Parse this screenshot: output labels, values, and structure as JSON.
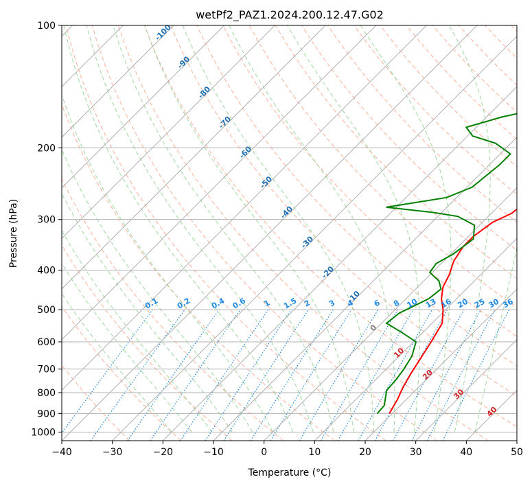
{
  "chart_data": {
    "type": "line",
    "chart_kind": "skew-T log-P diagram",
    "title": "wetPf2_PAZ1.2024.200.12.47.G02",
    "xlabel": "Temperature (°C)",
    "ylabel": "Pressure (hPa)",
    "xlim": [
      -40,
      50
    ],
    "ylim": [
      1050,
      100
    ],
    "y_scale": "log",
    "x_ticks": [
      -40,
      -30,
      -20,
      -10,
      0,
      10,
      20,
      30,
      40,
      50
    ],
    "x_tick_labels": [
      "−40",
      "−30",
      "−20",
      "−10",
      "0",
      "10",
      "20",
      "30",
      "40",
      "50"
    ],
    "y_ticks": [
      100,
      200,
      300,
      400,
      500,
      600,
      700,
      800,
      900,
      1000
    ],
    "y_tick_labels": [
      "100",
      "200",
      "300",
      "400",
      "500",
      "600",
      "700",
      "800",
      "900",
      "1000"
    ],
    "grid": true,
    "colors": {
      "temperature": "#ff0000",
      "dewpoint": "#008000",
      "isotherm": "#b0b0b0",
      "dry_adiabat": "#ff9a7a",
      "moist_adiabat": "#8cd18c",
      "mixing_ratio": "#1e88e5",
      "isotherm_label_neg": "#1f6fb4",
      "isotherm_label_zero": "#808080",
      "isotherm_label_pos": "#d62728",
      "mixing_label": "#1e88e5"
    },
    "series": [
      {
        "key": "temperature",
        "color": "#ff0000",
        "points": [
          [
            29.5,
            100
          ],
          [
            26.7,
            115
          ],
          [
            25.5,
            125
          ],
          [
            23.0,
            140
          ],
          [
            20.3,
            160
          ],
          [
            18.6,
            180
          ],
          [
            14.0,
            195
          ],
          [
            9.0,
            215
          ],
          [
            6.0,
            240
          ],
          [
            4.7,
            270
          ],
          [
            4.0,
            290
          ],
          [
            2.0,
            305
          ],
          [
            1.0,
            330
          ],
          [
            1.0,
            350
          ],
          [
            2.0,
            380
          ],
          [
            3.8,
            410
          ],
          [
            5.0,
            440
          ],
          [
            7.0,
            470
          ],
          [
            9.5,
            500
          ],
          [
            12.0,
            540
          ],
          [
            13.5,
            600
          ],
          [
            14.5,
            650
          ],
          [
            15.8,
            720
          ],
          [
            17.0,
            780
          ],
          [
            18.2,
            830
          ],
          [
            19.4,
            900
          ]
        ]
      },
      {
        "key": "dewpoint",
        "color": "#008000",
        "points": [
          [
            0.0,
            100
          ],
          [
            -3.5,
            115
          ],
          [
            -8.0,
            135
          ],
          [
            -10.0,
            150
          ],
          [
            -11.0,
            160
          ],
          [
            -17.0,
            168
          ],
          [
            -22.0,
            178
          ],
          [
            -19.0,
            187
          ],
          [
            -13.0,
            195
          ],
          [
            -8.0,
            207
          ],
          [
            -8.0,
            220
          ],
          [
            -9.0,
            250
          ],
          [
            -12.0,
            265
          ],
          [
            -22.0,
            280
          ],
          [
            -12.0,
            288
          ],
          [
            -6.0,
            295
          ],
          [
            -1.0,
            310
          ],
          [
            1.5,
            335
          ],
          [
            0.5,
            365
          ],
          [
            -1.0,
            385
          ],
          [
            -0.5,
            405
          ],
          [
            3.0,
            425
          ],
          [
            5.0,
            445
          ],
          [
            4.5,
            470
          ],
          [
            1.5,
            510
          ],
          [
            1.0,
            540
          ],
          [
            6.0,
            570
          ],
          [
            10.5,
            600
          ],
          [
            12.5,
            650
          ],
          [
            13.5,
            700
          ],
          [
            14.0,
            740
          ],
          [
            14.3,
            790
          ],
          [
            16.8,
            860
          ],
          [
            17.0,
            900
          ]
        ]
      }
    ],
    "isotherm_labels": [
      "-100",
      "-90",
      "-80",
      "-70",
      "-60",
      "-50",
      "-40",
      "-30",
      "-20",
      "-10",
      "0",
      "10",
      "20",
      "30",
      "40"
    ],
    "mixing_ratio_labels": [
      "0.1",
      "0.2",
      "0.4",
      "0.6",
      "1",
      "1.5",
      "2",
      "3",
      "4",
      "6",
      "8",
      "10",
      "13",
      "16",
      "20",
      "25",
      "30",
      "36"
    ]
  }
}
